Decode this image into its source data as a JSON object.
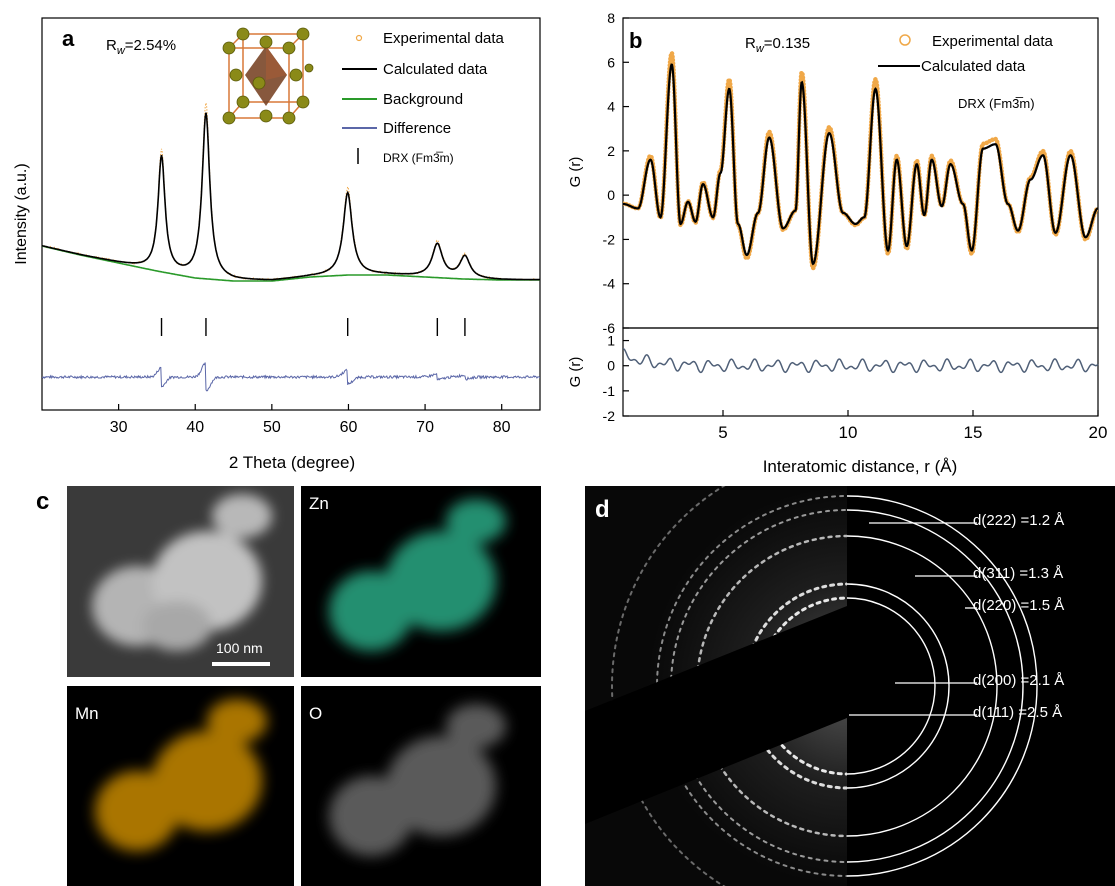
{
  "colors": {
    "experimental": "#f0a848",
    "calculated": "#000000",
    "background": "#2a9a2a",
    "difference": "#5b67a8",
    "pdf_diff": "#506078",
    "zn": "#3bbf96",
    "mn": "#e8a000",
    "o": "#9a9a9a"
  },
  "panels": {
    "a": {
      "label": "a",
      "rw": "R",
      "rw_sub": "w",
      "rw_value": "=2.54%"
    },
    "b": {
      "label": "b",
      "rw": "R",
      "rw_sub": "w",
      "rw_value": "=0.135"
    },
    "c": {
      "label": "c",
      "scale_bar": "100 nm",
      "maps": [
        "Zn",
        "Mn",
        "O"
      ]
    },
    "d": {
      "label": "d",
      "rings": [
        "d(222) =1.2 Å",
        "d(311) =1.3 Å",
        "d(220) =1.5 Å",
        "d(200) =2.1 Å",
        "d(111) =2.5 Å"
      ]
    }
  },
  "chart_data": [
    {
      "type": "line",
      "panel": "a",
      "xlabel": "2 Theta (degree)",
      "ylabel": "Intensity (a.u.)",
      "xlim": [
        20,
        85
      ],
      "xticks": [
        30,
        40,
        50,
        60,
        70,
        80
      ],
      "background_points": [
        [
          20,
          46
        ],
        [
          25,
          37
        ],
        [
          30,
          29
        ],
        [
          35,
          21
        ],
        [
          40,
          14
        ],
        [
          45,
          11
        ],
        [
          50,
          11
        ],
        [
          55,
          15
        ],
        [
          60,
          17
        ],
        [
          65,
          17
        ],
        [
          70,
          15
        ],
        [
          75,
          13
        ],
        [
          80,
          12
        ],
        [
          85,
          12
        ]
      ],
      "peaks": [
        {
          "pos": 35.6,
          "height": 115,
          "width": 0.55
        },
        {
          "pos": 41.4,
          "height": 165,
          "width": 0.6
        },
        {
          "pos": 59.9,
          "height": 82,
          "width": 0.7
        },
        {
          "pos": 71.6,
          "height": 33,
          "width": 0.8
        },
        {
          "pos": 75.2,
          "height": 22,
          "width": 0.8
        }
      ],
      "bragg_ticks": [
        35.6,
        41.4,
        59.9,
        71.6,
        75.2
      ],
      "legend": [
        {
          "name": "Experimental data",
          "style": "circle"
        },
        {
          "name": "Calculated data",
          "style": "line"
        },
        {
          "name": "Background",
          "style": "line"
        },
        {
          "name": "Difference",
          "style": "line"
        },
        {
          "name": "DRX (Fm3̅m)",
          "style": "tick"
        }
      ]
    },
    {
      "type": "line",
      "panel": "b",
      "xlabel": "Interatomic distance, r (Å)",
      "ylabel": "G (r)",
      "diff_ylabel": "G (r)",
      "xlim": [
        1,
        20
      ],
      "ylim": [
        -6,
        8
      ],
      "diff_ylim": [
        -2,
        1.5
      ],
      "xticks": [
        5,
        10,
        15,
        20
      ],
      "yticks": [
        -6,
        -4,
        -2,
        0,
        2,
        4,
        6,
        8
      ],
      "diff_yticks": [
        -2,
        -1,
        0,
        1
      ],
      "peaks": [
        {
          "r": 2.1,
          "g": 1.6
        },
        {
          "r": 2.5,
          "g": -1.0
        },
        {
          "r": 2.95,
          "g": 5.9
        },
        {
          "r": 3.3,
          "g": -1.3
        },
        {
          "r": 3.6,
          "g": -0.3
        },
        {
          "r": 3.9,
          "g": -1.2
        },
        {
          "r": 4.2,
          "g": 0.5
        },
        {
          "r": 4.6,
          "g": -1.0
        },
        {
          "r": 4.9,
          "g": 1.0
        },
        {
          "r": 5.25,
          "g": 4.8
        },
        {
          "r": 5.6,
          "g": -1.3
        },
        {
          "r": 5.95,
          "g": -2.7
        },
        {
          "r": 6.4,
          "g": -0.8
        },
        {
          "r": 6.85,
          "g": 2.6
        },
        {
          "r": 7.4,
          "g": -1.5
        },
        {
          "r": 7.9,
          "g": -0.7
        },
        {
          "r": 8.15,
          "g": 5.1
        },
        {
          "r": 8.6,
          "g": -3.1
        },
        {
          "r": 9.25,
          "g": 2.8
        },
        {
          "r": 9.8,
          "g": -0.8
        },
        {
          "r": 10.3,
          "g": -1.3
        },
        {
          "r": 10.65,
          "g": -1.0
        },
        {
          "r": 11.1,
          "g": 4.8
        },
        {
          "r": 11.6,
          "g": -2.5
        },
        {
          "r": 11.95,
          "g": 1.6
        },
        {
          "r": 12.35,
          "g": -2.3
        },
        {
          "r": 12.75,
          "g": 1.4
        },
        {
          "r": 13.05,
          "g": -0.9
        },
        {
          "r": 13.35,
          "g": 1.6
        },
        {
          "r": 13.75,
          "g": -0.5
        },
        {
          "r": 14.1,
          "g": 1.4
        },
        {
          "r": 14.6,
          "g": -0.4
        },
        {
          "r": 14.95,
          "g": -2.5
        },
        {
          "r": 15.4,
          "g": 2.1
        },
        {
          "r": 15.9,
          "g": 2.3
        },
        {
          "r": 16.4,
          "g": -0.4
        },
        {
          "r": 16.8,
          "g": -1.6
        },
        {
          "r": 17.3,
          "g": 0.7
        },
        {
          "r": 17.8,
          "g": 1.8
        },
        {
          "r": 18.3,
          "g": -1.7
        },
        {
          "r": 18.9,
          "g": 1.8
        },
        {
          "r": 19.5,
          "g": -1.9
        }
      ],
      "legend": [
        {
          "name": "Experimental data",
          "style": "circle"
        },
        {
          "name": "Calculated data",
          "style": "line"
        }
      ],
      "annotation": "DRX (Fm3̅m)"
    }
  ]
}
